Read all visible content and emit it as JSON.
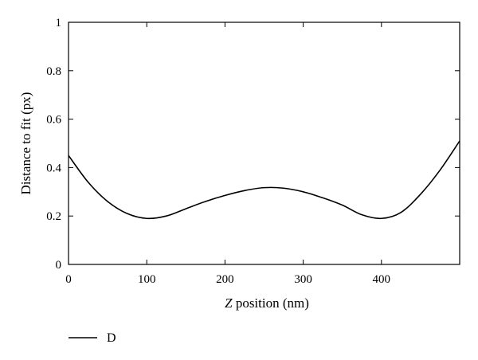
{
  "chart_data": {
    "type": "line",
    "title": "",
    "xlabel_italic": "Z",
    "xlabel_rest": " position (nm)",
    "ylabel": "Distance to fit (px)",
    "xlim": [
      0,
      500
    ],
    "ylim": [
      0,
      1
    ],
    "xticks": [
      0,
      100,
      200,
      300,
      400
    ],
    "yticks": [
      0,
      0.2,
      0.4,
      0.6,
      0.8,
      1
    ],
    "ytick_labels": [
      "0",
      "0.2",
      "0.4",
      "0.6",
      "0.8",
      "1"
    ],
    "grid": false,
    "legend_position": "bottom-left, below plot",
    "series": [
      {
        "name": "D",
        "color": "#000000",
        "x": [
          0,
          25,
          50,
          75,
          100,
          125,
          150,
          175,
          200,
          225,
          250,
          275,
          300,
          325,
          350,
          375,
          400,
          425,
          450,
          475,
          500
        ],
        "y": [
          0.45,
          0.34,
          0.26,
          0.21,
          0.19,
          0.2,
          0.23,
          0.26,
          0.285,
          0.305,
          0.317,
          0.315,
          0.3,
          0.275,
          0.245,
          0.205,
          0.19,
          0.215,
          0.29,
          0.39,
          0.51
        ]
      }
    ]
  }
}
